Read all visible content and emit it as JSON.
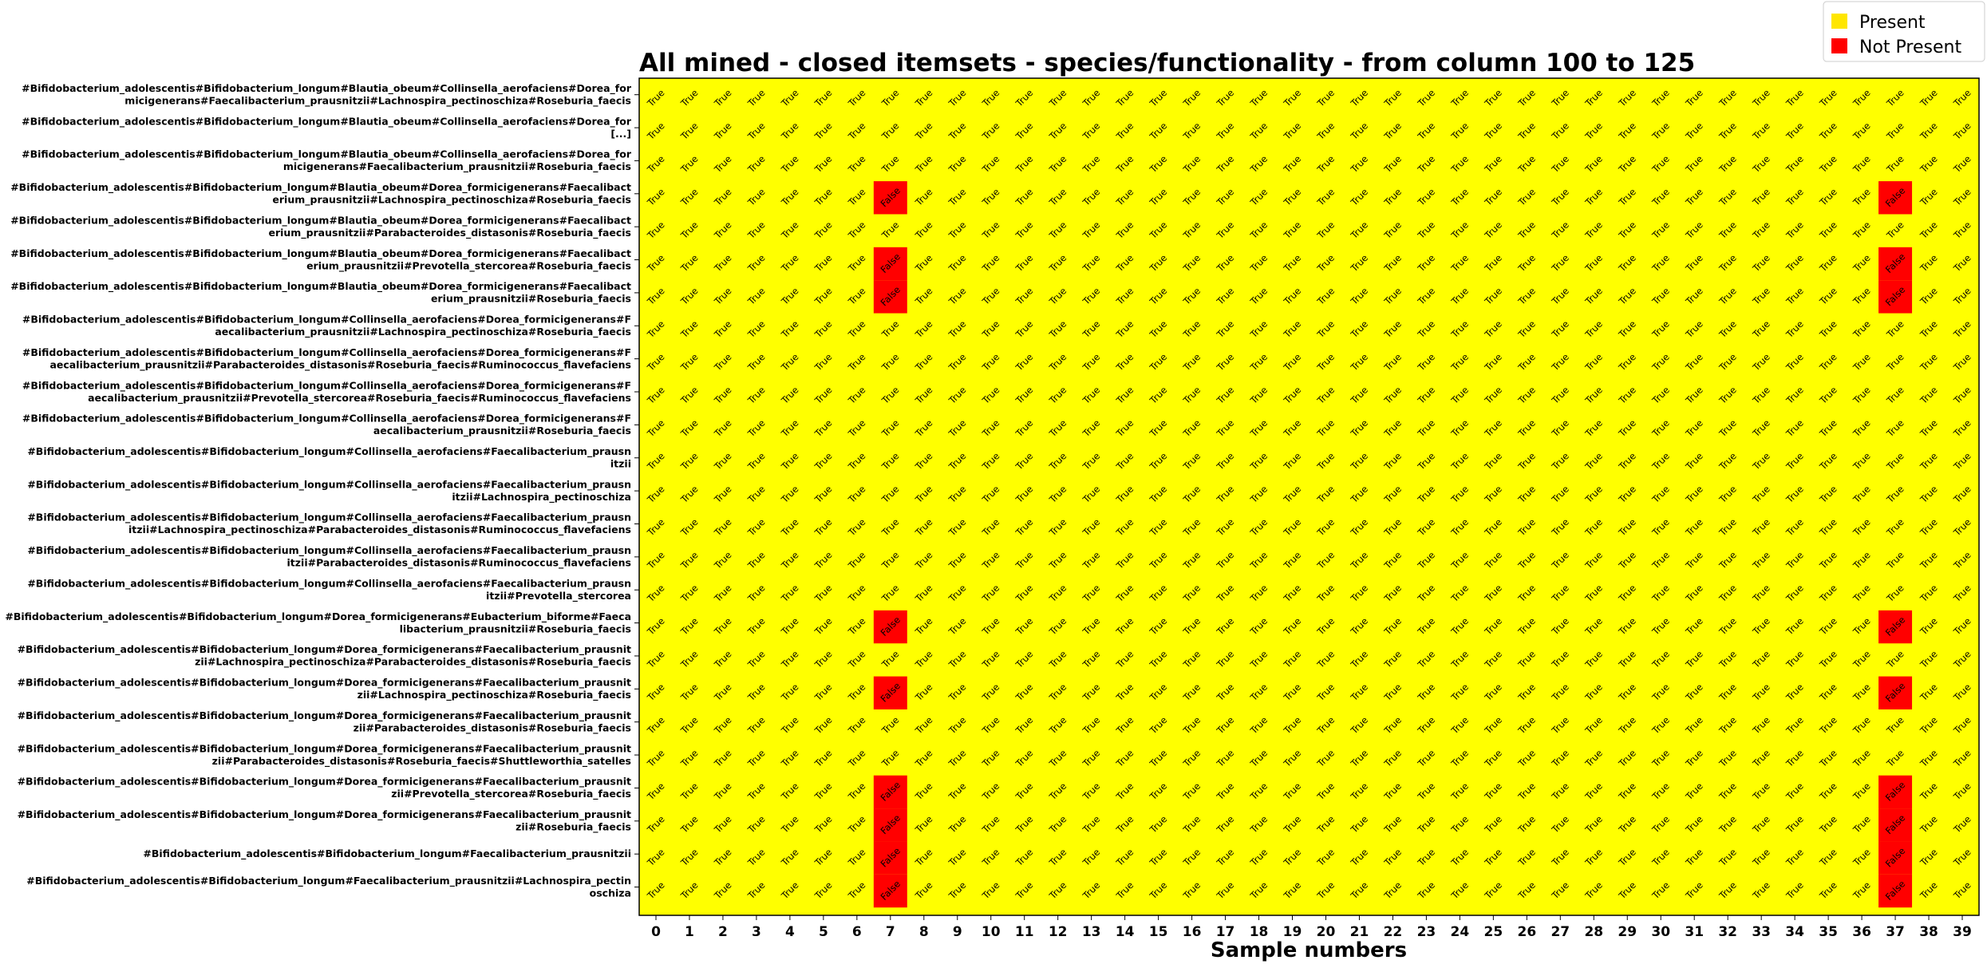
{
  "chart_data": {
    "type": "heatmap",
    "title": "All mined - closed itemsets - species/functionality - from column 100 to 125",
    "xlabel": "Sample numbers",
    "ylabel": "",
    "x": [
      0,
      1,
      2,
      3,
      4,
      5,
      6,
      7,
      8,
      9,
      10,
      11,
      12,
      13,
      14,
      15,
      16,
      17,
      18,
      19,
      20,
      21,
      22,
      23,
      24,
      25,
      26,
      27,
      28,
      29,
      30,
      31,
      32,
      33,
      34,
      35,
      36,
      37,
      38,
      39
    ],
    "rows": [
      [
        "#Bifidobacterium_adolescentis#Bifidobacterium_longum#Blautia_obeum#Collinsella_aerofaciens#Dorea_for",
        "micigenerans#Faecalibacterium_prausnitzii#Lachnospira_pectinoschiza#Roseburia_faecis"
      ],
      [
        "#Bifidobacterium_adolescentis#Bifidobacterium_longum#Blautia_obeum#Collinsella_aerofaciens#Dorea_for",
        "[...]"
      ],
      [
        "#Bifidobacterium_adolescentis#Bifidobacterium_longum#Blautia_obeum#Collinsella_aerofaciens#Dorea_for",
        "micigenerans#Faecalibacterium_prausnitzii#Roseburia_faecis"
      ],
      [
        "#Bifidobacterium_adolescentis#Bifidobacterium_longum#Blautia_obeum#Dorea_formicigenerans#Faecalibact",
        "erium_prausnitzii#Lachnospira_pectinoschiza#Roseburia_faecis"
      ],
      [
        "#Bifidobacterium_adolescentis#Bifidobacterium_longum#Blautia_obeum#Dorea_formicigenerans#Faecalibact",
        "erium_prausnitzii#Parabacteroides_distasonis#Roseburia_faecis"
      ],
      [
        "#Bifidobacterium_adolescentis#Bifidobacterium_longum#Blautia_obeum#Dorea_formicigenerans#Faecalibact",
        "erium_prausnitzii#Prevotella_stercorea#Roseburia_faecis"
      ],
      [
        "#Bifidobacterium_adolescentis#Bifidobacterium_longum#Blautia_obeum#Dorea_formicigenerans#Faecalibact",
        "erium_prausnitzii#Roseburia_faecis"
      ],
      [
        "#Bifidobacterium_adolescentis#Bifidobacterium_longum#Collinsella_aerofaciens#Dorea_formicigenerans#F",
        "aecalibacterium_prausnitzii#Lachnospira_pectinoschiza#Roseburia_faecis"
      ],
      [
        "#Bifidobacterium_adolescentis#Bifidobacterium_longum#Collinsella_aerofaciens#Dorea_formicigenerans#F",
        "aecalibacterium_prausnitzii#Parabacteroides_distasonis#Roseburia_faecis#Ruminococcus_flavefaciens"
      ],
      [
        "#Bifidobacterium_adolescentis#Bifidobacterium_longum#Collinsella_aerofaciens#Dorea_formicigenerans#F",
        "aecalibacterium_prausnitzii#Prevotella_stercorea#Roseburia_faecis#Ruminococcus_flavefaciens"
      ],
      [
        "#Bifidobacterium_adolescentis#Bifidobacterium_longum#Collinsella_aerofaciens#Dorea_formicigenerans#F",
        "aecalibacterium_prausnitzii#Roseburia_faecis"
      ],
      [
        "#Bifidobacterium_adolescentis#Bifidobacterium_longum#Collinsella_aerofaciens#Faecalibacterium_prausn",
        "itzii"
      ],
      [
        "#Bifidobacterium_adolescentis#Bifidobacterium_longum#Collinsella_aerofaciens#Faecalibacterium_prausn",
        "itzii#Lachnospira_pectinoschiza"
      ],
      [
        "#Bifidobacterium_adolescentis#Bifidobacterium_longum#Collinsella_aerofaciens#Faecalibacterium_prausn",
        "itzii#Lachnospira_pectinoschiza#Parabacteroides_distasonis#Ruminococcus_flavefaciens"
      ],
      [
        "#Bifidobacterium_adolescentis#Bifidobacterium_longum#Collinsella_aerofaciens#Faecalibacterium_prausn",
        "itzii#Parabacteroides_distasonis#Ruminococcus_flavefaciens"
      ],
      [
        "#Bifidobacterium_adolescentis#Bifidobacterium_longum#Collinsella_aerofaciens#Faecalibacterium_prausn",
        "itzii#Prevotella_stercorea"
      ],
      [
        "#Bifidobacterium_adolescentis#Bifidobacterium_longum#Dorea_formicigenerans#Eubacterium_biforme#Faeca",
        "libacterium_prausnitzii#Roseburia_faecis"
      ],
      [
        "#Bifidobacterium_adolescentis#Bifidobacterium_longum#Dorea_formicigenerans#Faecalibacterium_prausnit",
        "zii#Lachnospira_pectinoschiza#Parabacteroides_distasonis#Roseburia_faecis"
      ],
      [
        "#Bifidobacterium_adolescentis#Bifidobacterium_longum#Dorea_formicigenerans#Faecalibacterium_prausnit",
        "zii#Lachnospira_pectinoschiza#Roseburia_faecis"
      ],
      [
        "#Bifidobacterium_adolescentis#Bifidobacterium_longum#Dorea_formicigenerans#Faecalibacterium_prausnit",
        "zii#Parabacteroides_distasonis#Roseburia_faecis"
      ],
      [
        "#Bifidobacterium_adolescentis#Bifidobacterium_longum#Dorea_formicigenerans#Faecalibacterium_prausnit",
        "zii#Parabacteroides_distasonis#Roseburia_faecis#Shuttleworthia_satelles"
      ],
      [
        "#Bifidobacterium_adolescentis#Bifidobacterium_longum#Dorea_formicigenerans#Faecalibacterium_prausnit",
        "zii#Prevotella_stercorea#Roseburia_faecis"
      ],
      [
        "#Bifidobacterium_adolescentis#Bifidobacterium_longum#Dorea_formicigenerans#Faecalibacterium_prausnit",
        "zii#Roseburia_faecis"
      ],
      [
        "#Bifidobacterium_adolescentis#Bifidobacterium_longum#Faecalibacterium_prausnitzii"
      ],
      [
        "#Bifidobacterium_adolescentis#Bifidobacterium_longum#Faecalibacterium_prausnitzii#Lachnospira_pectin",
        "oschiza"
      ]
    ],
    "false_cells": {
      "3": [
        7,
        37
      ],
      "5": [
        7,
        37
      ],
      "6": [
        7,
        37
      ],
      "16": [
        7,
        37
      ],
      "18": [
        7,
        37
      ],
      "21": [
        7,
        37
      ],
      "22": [
        7,
        37
      ],
      "23": [
        7,
        37
      ],
      "24": [
        7,
        37
      ]
    },
    "true_text": "True",
    "false_text": "False",
    "legend": {
      "position": "top-right",
      "items": [
        {
          "label": "Present",
          "color": "#ffe600"
        },
        {
          "label": "Not Present",
          "color": "#ff0000"
        }
      ]
    },
    "colors": {
      "present": "#ffff00",
      "not_present": "#ff0000",
      "legend_present": "#ffe600"
    }
  }
}
